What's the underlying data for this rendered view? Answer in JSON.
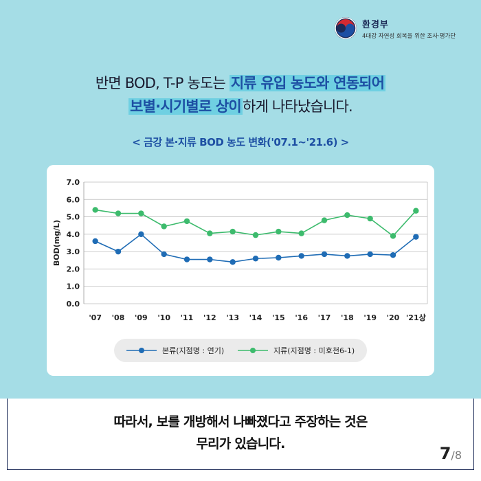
{
  "logo": {
    "name": "환경부",
    "subtitle": "4대강 자연성 회복을 위한 조사·평가단"
  },
  "headline": {
    "line1_plain": "반면 BOD, T-P 농도는 ",
    "line1_highlight": "지류 유입 농도와 연동되어",
    "line2_highlight": "보별·시기별로 상이",
    "line2_plain": "하게 나타났습니다."
  },
  "chart_data": {
    "type": "line",
    "title": "< 금강 본·지류 BOD 농도 변화('07.1~'21.6) >",
    "xlabel": "",
    "ylabel": "BOD(mg/L)",
    "categories": [
      "'07",
      "'08",
      "'09",
      "'10",
      "'11",
      "'12",
      "'13",
      "'14",
      "'15",
      "'16",
      "'17",
      "'18",
      "'19",
      "'20",
      "'21상"
    ],
    "ylim": [
      0,
      7
    ],
    "yticks": [
      "0.0",
      "1.0",
      "2.0",
      "3.0",
      "4.0",
      "5.0",
      "6.0",
      "7.0"
    ],
    "grid": true,
    "legend_position": "bottom",
    "series": [
      {
        "name": "본류(지점명 : 연기)",
        "color": "#1f6cb5",
        "values": [
          3.6,
          3.0,
          4.0,
          2.85,
          2.55,
          2.55,
          2.4,
          2.6,
          2.65,
          2.75,
          2.85,
          2.75,
          2.85,
          2.8,
          3.85
        ]
      },
      {
        "name": "지류(지점명 : 미호천6-1)",
        "color": "#3dbb6d",
        "values": [
          5.4,
          5.2,
          5.2,
          4.45,
          4.75,
          4.05,
          4.15,
          3.95,
          4.15,
          4.05,
          4.8,
          5.1,
          4.9,
          3.9,
          5.35
        ]
      }
    ]
  },
  "conclusion": {
    "line1": "따라서, 보를 개방해서 나빠졌다고 주장하는 것은",
    "line2": "무리가 있습니다."
  },
  "pager": {
    "current": "7",
    "total": "/8"
  }
}
